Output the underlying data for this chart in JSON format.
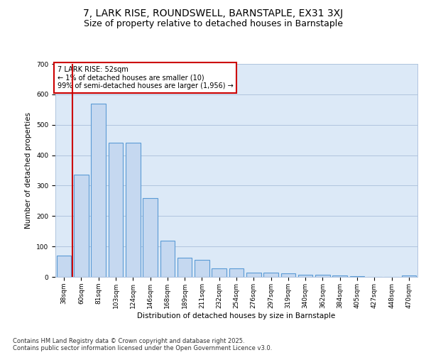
{
  "title_line1": "7, LARK RISE, ROUNDSWELL, BARNSTAPLE, EX31 3XJ",
  "title_line2": "Size of property relative to detached houses in Barnstaple",
  "xlabel": "Distribution of detached houses by size in Barnstaple",
  "ylabel": "Number of detached properties",
  "categories": [
    "38sqm",
    "60sqm",
    "81sqm",
    "103sqm",
    "124sqm",
    "146sqm",
    "168sqm",
    "189sqm",
    "211sqm",
    "232sqm",
    "254sqm",
    "276sqm",
    "297sqm",
    "319sqm",
    "340sqm",
    "362sqm",
    "384sqm",
    "405sqm",
    "427sqm",
    "448sqm",
    "470sqm"
  ],
  "values": [
    70,
    335,
    570,
    440,
    440,
    260,
    120,
    62,
    55,
    28,
    28,
    15,
    15,
    12,
    7,
    7,
    5,
    3,
    0,
    0,
    4
  ],
  "bar_color": "#c5d8f0",
  "bar_edge_color": "#5b9bd5",
  "bg_color": "#dce9f7",
  "grid_color": "#b0c4de",
  "annotation_box_text": "7 LARK RISE: 52sqm\n← 1% of detached houses are smaller (10)\n99% of semi-detached houses are larger (1,956) →",
  "annotation_box_color": "#cc0000",
  "vline_color": "#cc0000",
  "ylim": [
    0,
    700
  ],
  "yticks": [
    0,
    100,
    200,
    300,
    400,
    500,
    600,
    700
  ],
  "footnote": "Contains HM Land Registry data © Crown copyright and database right 2025.\nContains public sector information licensed under the Open Government Licence v3.0.",
  "title_fontsize": 10,
  "subtitle_fontsize": 9,
  "label_fontsize": 7.5,
  "tick_fontsize": 6.5,
  "footnote_fontsize": 6,
  "ann_fontsize": 7
}
